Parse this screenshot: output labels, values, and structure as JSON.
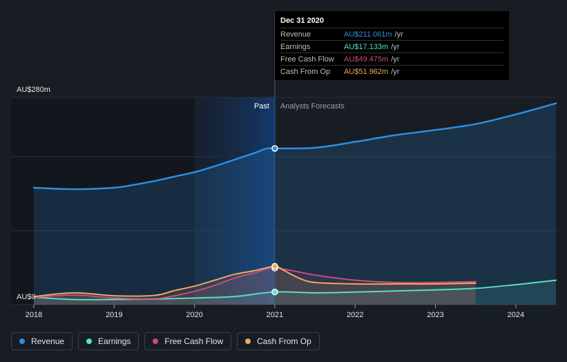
{
  "chart_data": {
    "type": "line",
    "y_unit_labels": {
      "top": "AU$280m",
      "bottom": "AU$0"
    },
    "ylim": [
      0,
      280
    ],
    "xlim": [
      2018,
      2024.5
    ],
    "x_ticks": [
      2018,
      2019,
      2020,
      2021,
      2022,
      2023,
      2024
    ],
    "x_tick_labels": [
      "2018",
      "2019",
      "2020",
      "2021",
      "2022",
      "2023",
      "2024"
    ],
    "divider_x": 2021,
    "past_label": "Past",
    "forecast_label": "Analysts Forecasts",
    "series": [
      {
        "name": "Revenue",
        "color": "#2d8fe3",
        "points": [
          [
            2018,
            158
          ],
          [
            2018.5,
            156
          ],
          [
            2019,
            158
          ],
          [
            2019.25,
            162
          ],
          [
            2019.5,
            167
          ],
          [
            2019.75,
            173
          ],
          [
            2020,
            179
          ],
          [
            2020.25,
            187
          ],
          [
            2020.5,
            196
          ],
          [
            2020.75,
            205
          ],
          [
            2020.9,
            211
          ],
          [
            2021,
            211.061
          ],
          [
            2021.5,
            212
          ],
          [
            2022,
            220
          ],
          [
            2022.5,
            229
          ],
          [
            2023,
            236
          ],
          [
            2023.5,
            244
          ],
          [
            2024,
            257
          ],
          [
            2024.5,
            272
          ]
        ]
      },
      {
        "name": "Earnings",
        "color": "#57e0c4",
        "points": [
          [
            2018,
            10
          ],
          [
            2018.5,
            7
          ],
          [
            2019,
            7
          ],
          [
            2019.5,
            7.5
          ],
          [
            2020,
            9
          ],
          [
            2020.5,
            11
          ],
          [
            2021,
            17.133
          ],
          [
            2021.5,
            16
          ],
          [
            2022,
            17
          ],
          [
            2022.5,
            18.5
          ],
          [
            2023,
            20
          ],
          [
            2023.5,
            22
          ],
          [
            2024,
            27
          ],
          [
            2024.5,
            33
          ]
        ]
      },
      {
        "name": "Free Cash Flow",
        "color": "#cc4a84",
        "points": [
          [
            2018,
            10
          ],
          [
            2018.5,
            13
          ],
          [
            2019,
            9
          ],
          [
            2019.5,
            8
          ],
          [
            2019.75,
            12
          ],
          [
            2020,
            18
          ],
          [
            2020.25,
            26
          ],
          [
            2020.5,
            36
          ],
          [
            2020.75,
            43
          ],
          [
            2021,
            49.475
          ],
          [
            2021.5,
            40
          ],
          [
            2022,
            33
          ],
          [
            2022.5,
            30
          ],
          [
            2023,
            30
          ],
          [
            2023.5,
            31
          ]
        ]
      },
      {
        "name": "Cash From Op",
        "color": "#e9aa5e",
        "points": [
          [
            2018,
            11
          ],
          [
            2018.5,
            16
          ],
          [
            2019,
            12
          ],
          [
            2019.5,
            12.5
          ],
          [
            2019.75,
            19
          ],
          [
            2020,
            25
          ],
          [
            2020.25,
            33
          ],
          [
            2020.5,
            41
          ],
          [
            2020.75,
            46
          ],
          [
            2021,
            51.962
          ],
          [
            2021.1,
            47
          ],
          [
            2021.3,
            36
          ],
          [
            2021.5,
            30
          ],
          [
            2022,
            28
          ],
          [
            2022.5,
            28
          ],
          [
            2023,
            28
          ],
          [
            2023.5,
            29
          ]
        ]
      }
    ],
    "tooltip": {
      "date": "Dec 31 2020",
      "rows": [
        {
          "name": "Revenue",
          "value": "AU$211.061m",
          "unit": "/yr",
          "color": "#2d8fe3"
        },
        {
          "name": "Earnings",
          "value": "AU$17.133m",
          "unit": "/yr",
          "color": "#57e0c4"
        },
        {
          "name": "Free Cash Flow",
          "value": "AU$49.475m",
          "unit": "/yr",
          "color": "#cc4a84"
        },
        {
          "name": "Cash From Op",
          "value": "AU$51.962m",
          "unit": "/yr",
          "color": "#e9aa5e"
        }
      ]
    },
    "legend": [
      {
        "name": "Revenue",
        "color": "#2d8fe3"
      },
      {
        "name": "Earnings",
        "color": "#57e0c4"
      },
      {
        "name": "Free Cash Flow",
        "color": "#cc4a84"
      },
      {
        "name": "Cash From Op",
        "color": "#e9aa5e"
      }
    ]
  }
}
